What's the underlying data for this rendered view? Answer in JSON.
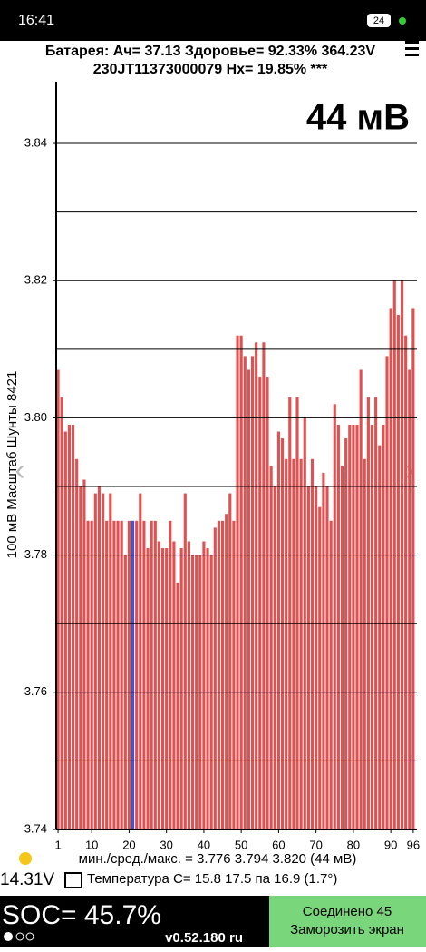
{
  "status_bar": {
    "time": "16:41",
    "battery": "24"
  },
  "header": {
    "line1": "Батарея:  Ач= 37.13  Здоровье= 92.33%   364.23V",
    "line2": "230JT11373000079   Нх= 19.85% ***"
  },
  "chart_data": {
    "type": "bar",
    "annotation": "44 мВ",
    "y_label": "100 мВ Масштаб   Шунты 8421",
    "color": "#e05252",
    "highlight_color": "#4a4ae8",
    "highlight_x": 21,
    "x": [
      1,
      2,
      3,
      4,
      5,
      6,
      7,
      8,
      9,
      10,
      11,
      12,
      13,
      14,
      15,
      16,
      17,
      18,
      19,
      20,
      21,
      22,
      23,
      24,
      25,
      26,
      27,
      28,
      29,
      30,
      31,
      32,
      33,
      34,
      35,
      36,
      37,
      38,
      39,
      40,
      41,
      42,
      43,
      44,
      45,
      46,
      47,
      48,
      49,
      50,
      51,
      52,
      53,
      54,
      55,
      56,
      57,
      58,
      59,
      60,
      61,
      62,
      63,
      64,
      65,
      66,
      67,
      68,
      69,
      70,
      71,
      72,
      73,
      74,
      75,
      76,
      77,
      78,
      79,
      80,
      81,
      82,
      83,
      84,
      85,
      86,
      87,
      88,
      89,
      90,
      91,
      92,
      93,
      94,
      95,
      96
    ],
    "values": [
      3.807,
      3.803,
      3.798,
      3.799,
      3.799,
      3.794,
      3.79,
      3.791,
      3.785,
      3.785,
      3.789,
      3.79,
      3.789,
      3.785,
      3.789,
      3.785,
      3.785,
      3.785,
      3.78,
      3.785,
      3.785,
      3.785,
      3.789,
      3.785,
      3.781,
      3.785,
      3.785,
      3.782,
      3.781,
      3.781,
      3.785,
      3.782,
      3.776,
      3.781,
      3.789,
      3.782,
      3.78,
      3.78,
      3.78,
      3.782,
      3.781,
      3.78,
      3.784,
      3.785,
      3.785,
      3.786,
      3.789,
      3.785,
      3.812,
      3.812,
      3.809,
      3.807,
      3.809,
      3.811,
      3.806,
      3.811,
      3.806,
      3.793,
      3.79,
      3.798,
      3.797,
      3.794,
      3.803,
      3.794,
      3.803,
      3.794,
      3.8,
      3.79,
      3.794,
      3.79,
      3.787,
      3.792,
      3.79,
      3.785,
      3.802,
      3.799,
      3.793,
      3.797,
      3.799,
      3.799,
      3.799,
      3.807,
      3.794,
      3.803,
      3.799,
      3.803,
      3.796,
      3.799,
      3.809,
      3.816,
      3.82,
      3.815,
      3.82,
      3.812,
      3.807,
      3.816
    ],
    "xlim": [
      0.5,
      97
    ],
    "xticks": [
      1,
      10,
      20,
      30,
      40,
      50,
      60,
      70,
      80,
      90,
      96
    ],
    "ylim": [
      3.74,
      3.849
    ],
    "yticks": [
      3.74,
      3.76,
      3.78,
      {
        "value": 3.8,
        "label": "3.80"
      },
      3.82,
      3.84
    ],
    "grid_lines": [
      3.74,
      3.75,
      3.76,
      3.77,
      3.78,
      3.79,
      3.8,
      3.81,
      3.82,
      3.83,
      3.84
    ],
    "grid": true
  },
  "footer": {
    "stats": "мин./сред./макс. = 3.776 3.794 3.820  (44 мВ)",
    "voltage": "14.31V",
    "temperature": "Температура C= 15.8  17.5  па  16.9  (1.7°)",
    "soc": "SOC= 45.7%",
    "version": "v0.52.180 ru",
    "button_line1": "Соединено 45",
    "button_line2": "Заморозить экран"
  }
}
